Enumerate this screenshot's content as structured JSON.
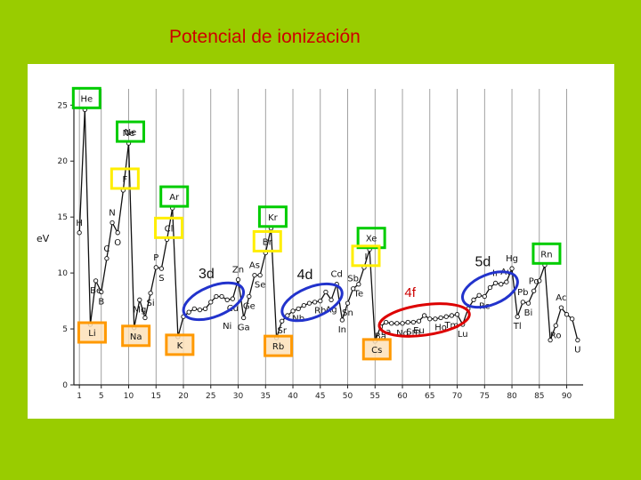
{
  "title": "Potencial de ionización",
  "chart_data": {
    "type": "line",
    "ylabel": "eV",
    "xlabel": "",
    "xlim": [
      0,
      93
    ],
    "ylim": [
      0,
      25.5
    ],
    "xticks": [
      1,
      5,
      10,
      15,
      20,
      25,
      30,
      35,
      40,
      45,
      50,
      55,
      60,
      65,
      70,
      75,
      80,
      85,
      90
    ],
    "yticks": [
      0,
      5,
      10,
      15,
      20,
      25
    ],
    "series": [
      {
        "values": [
          [
            1,
            13.6
          ],
          [
            2,
            24.6
          ],
          [
            3,
            5.4
          ],
          [
            4,
            9.3
          ],
          [
            5,
            8.3
          ],
          [
            6,
            11.3
          ],
          [
            7,
            14.5
          ],
          [
            8,
            13.6
          ],
          [
            9,
            17.4
          ],
          [
            10,
            21.6
          ],
          [
            11,
            5.1
          ],
          [
            12,
            7.6
          ],
          [
            13,
            6.0
          ],
          [
            14,
            8.2
          ],
          [
            15,
            10.5
          ],
          [
            16,
            10.4
          ],
          [
            17,
            13.0
          ],
          [
            18,
            15.8
          ],
          [
            19,
            4.3
          ],
          [
            20,
            6.1
          ],
          [
            21,
            6.5
          ],
          [
            22,
            6.8
          ],
          [
            23,
            6.7
          ],
          [
            24,
            6.8
          ],
          [
            25,
            7.4
          ],
          [
            26,
            7.9
          ],
          [
            27,
            7.9
          ],
          [
            28,
            7.6
          ],
          [
            29,
            7.7
          ],
          [
            30,
            9.4
          ],
          [
            31,
            6.0
          ],
          [
            32,
            7.9
          ],
          [
            33,
            9.8
          ],
          [
            34,
            9.8
          ],
          [
            35,
            11.8
          ],
          [
            36,
            14.0
          ],
          [
            37,
            4.2
          ],
          [
            38,
            5.7
          ],
          [
            39,
            6.2
          ],
          [
            40,
            6.6
          ],
          [
            41,
            6.8
          ],
          [
            42,
            7.1
          ],
          [
            43,
            7.3
          ],
          [
            44,
            7.4
          ],
          [
            45,
            7.5
          ],
          [
            46,
            8.3
          ],
          [
            47,
            7.6
          ],
          [
            48,
            9.0
          ],
          [
            49,
            5.8
          ],
          [
            50,
            7.3
          ],
          [
            51,
            8.6
          ],
          [
            52,
            9.0
          ],
          [
            53,
            10.5
          ],
          [
            54,
            12.1
          ],
          [
            55,
            3.9
          ],
          [
            56,
            5.2
          ],
          [
            57,
            5.6
          ],
          [
            58,
            5.5
          ],
          [
            59,
            5.5
          ],
          [
            60,
            5.5
          ],
          [
            61,
            5.6
          ],
          [
            62,
            5.6
          ],
          [
            63,
            5.7
          ],
          [
            64,
            6.2
          ],
          [
            65,
            5.9
          ],
          [
            66,
            5.9
          ],
          [
            67,
            6.0
          ],
          [
            68,
            6.1
          ],
          [
            69,
            6.2
          ],
          [
            70,
            6.3
          ],
          [
            71,
            5.4
          ],
          [
            72,
            6.8
          ],
          [
            73,
            7.6
          ],
          [
            74,
            8.0
          ],
          [
            75,
            7.9
          ],
          [
            76,
            8.7
          ],
          [
            77,
            9.1
          ],
          [
            78,
            9.0
          ],
          [
            79,
            9.2
          ],
          [
            80,
            10.4
          ],
          [
            81,
            6.1
          ],
          [
            82,
            7.4
          ],
          [
            83,
            7.3
          ],
          [
            84,
            8.4
          ],
          [
            85,
            9.3
          ],
          [
            86,
            10.7
          ],
          [
            87,
            4.0
          ],
          [
            88,
            5.3
          ],
          [
            89,
            6.9
          ],
          [
            90,
            6.3
          ],
          [
            91,
            5.9
          ],
          [
            92,
            4.0
          ]
        ]
      }
    ],
    "element_labels": [
      {
        "symbol": "Ne",
        "x": 10,
        "y": 21.6
      },
      {
        "symbol": "N",
        "x": 7,
        "y": 14.5
      },
      {
        "symbol": "O",
        "x": 8,
        "y": 13.6
      },
      {
        "symbol": "H",
        "x": 1,
        "y": 13.6
      },
      {
        "symbol": "C",
        "x": 6,
        "y": 11.3
      },
      {
        "symbol": "Be",
        "x": 4,
        "y": 9.3
      },
      {
        "symbol": "B",
        "x": 5,
        "y": 8.3
      },
      {
        "symbol": "P",
        "x": 15,
        "y": 10.5
      },
      {
        "symbol": "S",
        "x": 16,
        "y": 10.4
      },
      {
        "symbol": "Si",
        "x": 14,
        "y": 8.2
      },
      {
        "symbol": "Mg",
        "x": 12,
        "y": 7.6
      },
      {
        "symbol": "Zn",
        "x": 30,
        "y": 9.4
      },
      {
        "symbol": "As",
        "x": 33,
        "y": 9.8
      },
      {
        "symbol": "Se",
        "x": 34,
        "y": 9.8
      },
      {
        "symbol": "Ge",
        "x": 32,
        "y": 7.9
      },
      {
        "symbol": "Ga",
        "x": 31,
        "y": 6.0
      },
      {
        "symbol": "Cu",
        "x": 29,
        "y": 7.7
      },
      {
        "symbol": "Ni",
        "x": 28,
        "y": 6.1
      },
      {
        "symbol": "Cd",
        "x": 48,
        "y": 9.0
      },
      {
        "symbol": "Sb",
        "x": 51,
        "y": 8.6
      },
      {
        "symbol": "Te",
        "x": 52,
        "y": 9.0
      },
      {
        "symbol": "Sn",
        "x": 50,
        "y": 7.3
      },
      {
        "symbol": "In",
        "x": 49,
        "y": 5.8
      },
      {
        "symbol": "Ag",
        "x": 47,
        "y": 7.6
      },
      {
        "symbol": "Rh",
        "x": 45,
        "y": 7.5
      },
      {
        "symbol": "Sr",
        "x": 38,
        "y": 5.7
      },
      {
        "symbol": "Nb",
        "x": 41,
        "y": 6.8
      },
      {
        "symbol": "Ir",
        "x": 77,
        "y": 9.1
      },
      {
        "symbol": "Au",
        "x": 79,
        "y": 9.2
      },
      {
        "symbol": "Hg",
        "x": 80,
        "y": 10.4
      },
      {
        "symbol": "Pb",
        "x": 82,
        "y": 7.4
      },
      {
        "symbol": "Po",
        "x": 84,
        "y": 8.4
      },
      {
        "symbol": "Bi",
        "x": 83,
        "y": 7.3
      },
      {
        "symbol": "Tl",
        "x": 81,
        "y": 6.1
      },
      {
        "symbol": "Re",
        "x": 75,
        "y": 7.9
      },
      {
        "symbol": "Lu",
        "x": 71,
        "y": 5.4
      },
      {
        "symbol": "Tm",
        "x": 69,
        "y": 6.2
      },
      {
        "symbol": "Ho",
        "x": 67,
        "y": 6.0
      },
      {
        "symbol": "Eu",
        "x": 63,
        "y": 5.7
      },
      {
        "symbol": "Sm",
        "x": 62,
        "y": 5.6
      },
      {
        "symbol": "Nd",
        "x": 60,
        "y": 5.5
      },
      {
        "symbol": "Ba",
        "x": 56,
        "y": 5.2
      },
      {
        "symbol": "La",
        "x": 57,
        "y": 5.6
      },
      {
        "symbol": "Ac",
        "x": 89,
        "y": 6.9
      },
      {
        "symbol": "Ro",
        "x": 88,
        "y": 5.3
      },
      {
        "symbol": "U",
        "x": 92,
        "y": 4.0
      }
    ],
    "boxed_labels": [
      {
        "symbol": "He",
        "x": 2,
        "y": 24.6,
        "color": "#00cc00"
      },
      {
        "symbol": "Ne",
        "x": 10,
        "y": 21.6,
        "color": "#00cc00"
      },
      {
        "symbol": "Ar",
        "x": 18,
        "y": 15.8,
        "color": "#00cc00"
      },
      {
        "symbol": "Kr",
        "x": 36,
        "y": 14.0,
        "color": "#00cc00"
      },
      {
        "symbol": "Xe",
        "x": 54,
        "y": 12.1,
        "color": "#00cc00"
      },
      {
        "symbol": "Rn",
        "x": 86,
        "y": 10.7,
        "color": "#00cc00"
      },
      {
        "symbol": "F",
        "x": 9,
        "y": 17.4,
        "color": "#ffee00"
      },
      {
        "symbol": "Cl",
        "x": 17,
        "y": 13.0,
        "color": "#ffee00"
      },
      {
        "symbol": "Br",
        "x": 35,
        "y": 11.8,
        "color": "#ffee00"
      },
      {
        "symbol": "I",
        "x": 53,
        "y": 10.5,
        "color": "#ffee00"
      },
      {
        "symbol": "Li",
        "x": 3,
        "y": 5.4,
        "color": "#ff9900"
      },
      {
        "symbol": "Na",
        "x": 11,
        "y": 5.1,
        "color": "#ff9900"
      },
      {
        "symbol": "K",
        "x": 19,
        "y": 4.3,
        "color": "#ff9900"
      },
      {
        "symbol": "Rb",
        "x": 37,
        "y": 4.2,
        "color": "#ff9900"
      },
      {
        "symbol": "Cs",
        "x": 55,
        "y": 3.9,
        "color": "#ff9900"
      }
    ],
    "annotations": [
      {
        "text": "3d",
        "x_range": [
          21,
          30
        ],
        "color": "#2233cc"
      },
      {
        "text": "4d",
        "x_range": [
          39,
          48
        ],
        "color": "#2233cc"
      },
      {
        "text": "4f",
        "x_range": [
          57,
          71
        ],
        "color": "#dd0000"
      },
      {
        "text": "5d",
        "x_range": [
          72,
          80
        ],
        "color": "#2233cc"
      }
    ]
  }
}
